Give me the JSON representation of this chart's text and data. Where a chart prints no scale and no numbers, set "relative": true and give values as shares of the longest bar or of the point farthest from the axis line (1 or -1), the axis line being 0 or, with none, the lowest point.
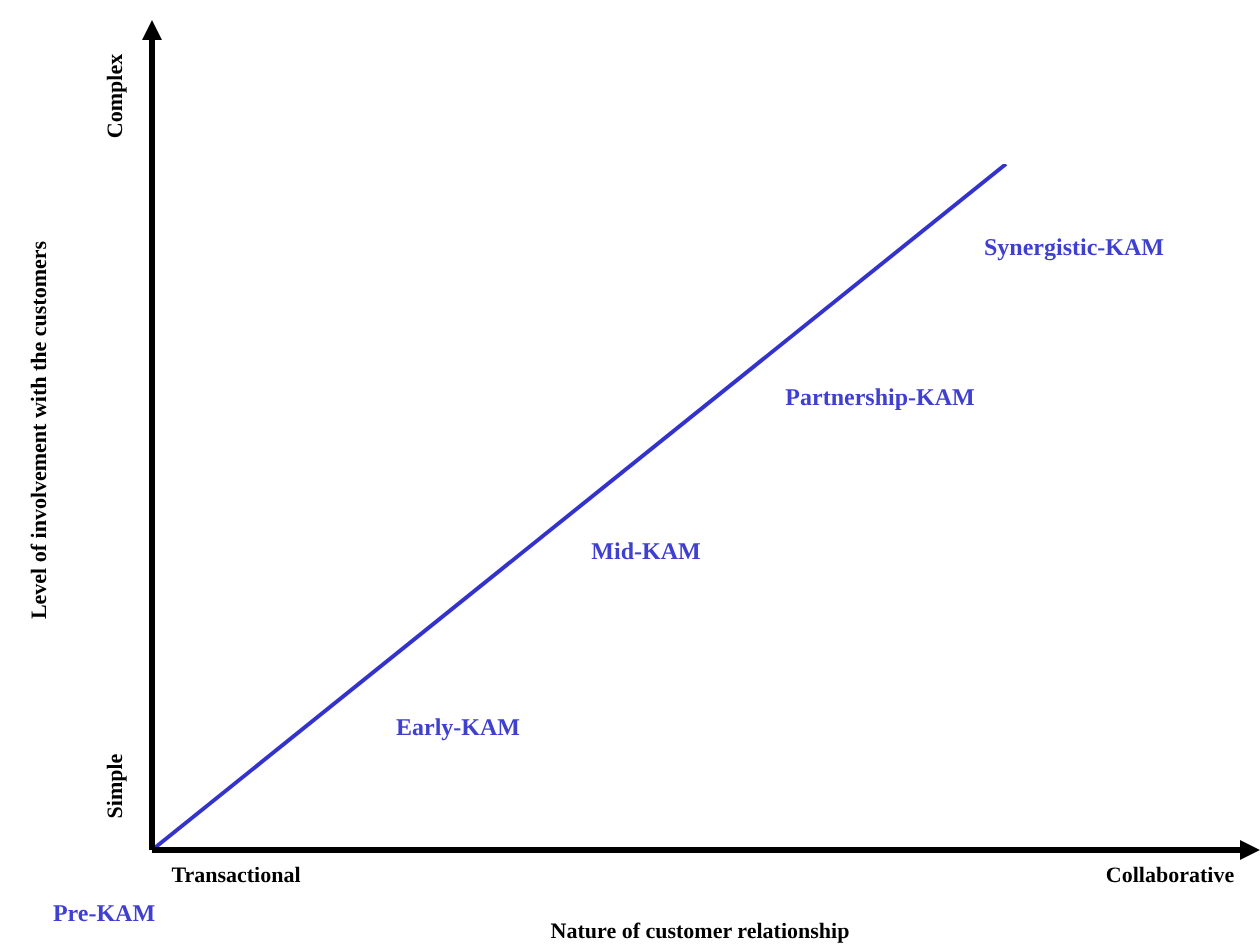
{
  "chart_data": {
    "type": "line",
    "relative": true,
    "xlabel": "Nature of customer relationship",
    "ylabel": "Level of involvement with the customers",
    "categories": [
      null,
      null
    ],
    "series": [
      {
        "color": "#3333cc",
        "values": [
          0,
          1
        ]
      }
    ],
    "legend": false,
    "marker": "none",
    "line_style": "solid",
    "annotations": [
      "Transactional",
      "Collaborative",
      "Simple",
      "Complex",
      "Pre-KAM",
      "Early-KAM",
      "Mid-KAM",
      "Partnership-KAM",
      "Synergistic-KAM"
    ]
  }
}
